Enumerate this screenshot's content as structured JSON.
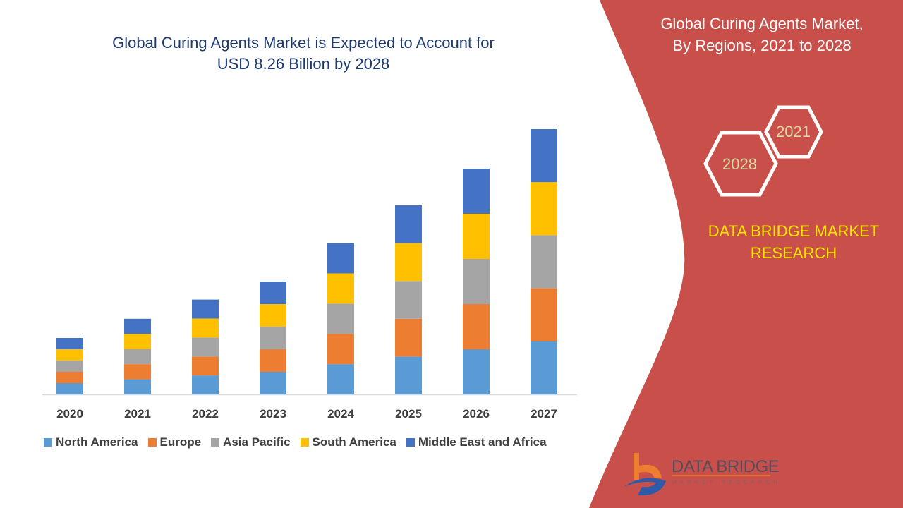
{
  "title_line1": "Global Curing Agents Market is Expected to Account for",
  "title_line2": "USD 8.26 Billion by 2028",
  "side_panel": {
    "title_line1": "Global Curing Agents Market,",
    "title_line2": "By Regions, 2021 to 2028",
    "hex_year_1": "2021",
    "hex_year_2": "2028",
    "brand_line1": "DATA BRIDGE MARKET",
    "brand_line2": "RESEARCH",
    "panel_color": "#c9504a"
  },
  "logo": {
    "name": "DATA BRIDGE",
    "tagline": "MARKET RESEARCH"
  },
  "chart_data": {
    "type": "bar",
    "stacked": true,
    "title": "",
    "xlabel": "",
    "ylabel": "",
    "ylim": [
      0,
      25
    ],
    "grid": false,
    "legend_placement": "bottom",
    "categories": [
      "2020",
      "2021",
      "2022",
      "2023",
      "2024",
      "2025",
      "2026",
      "2027"
    ],
    "series": [
      {
        "name": "North America",
        "color": "#5b9bd5",
        "values": [
          1.0,
          1.34,
          1.68,
          2.0,
          2.68,
          3.35,
          4.0,
          4.7
        ]
      },
      {
        "name": "Europe",
        "color": "#ed7d31",
        "values": [
          1.0,
          1.34,
          1.68,
          2.0,
          2.68,
          3.35,
          4.0,
          4.7
        ]
      },
      {
        "name": "Asia Pacific",
        "color": "#a5a5a5",
        "values": [
          1.0,
          1.34,
          1.68,
          2.0,
          2.68,
          3.35,
          4.0,
          4.7
        ]
      },
      {
        "name": "South America",
        "color": "#ffc000",
        "values": [
          1.0,
          1.34,
          1.68,
          2.0,
          2.68,
          3.35,
          4.0,
          4.7
        ]
      },
      {
        "name": "Middle East and Africa",
        "color": "#4472c4",
        "values": [
          1.0,
          1.34,
          1.68,
          2.0,
          2.68,
          3.35,
          4.0,
          4.7
        ]
      }
    ]
  }
}
